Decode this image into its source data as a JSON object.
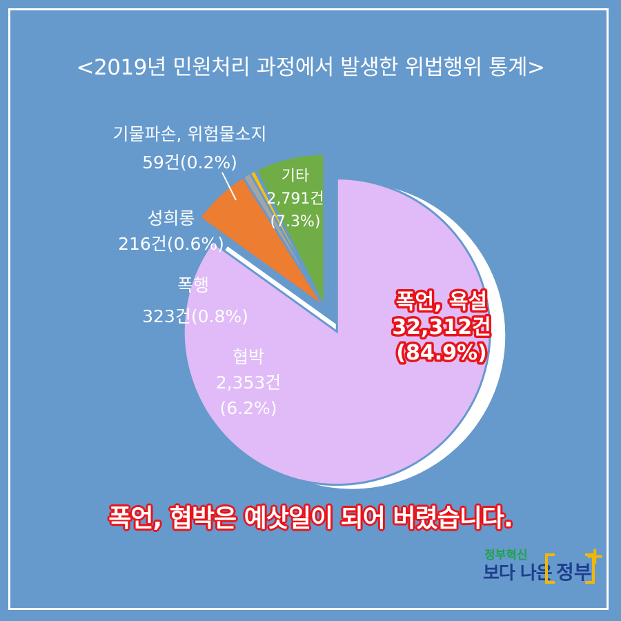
{
  "title": "<2019년 민원처리 과정에서 발생한 위법행위 통계>",
  "headline": "폭언, 협박은 예삿일이 되어 버렸습니다.",
  "logo": {
    "top": "정부혁신",
    "main": "보다 나은",
    "accent": "정부"
  },
  "chart_data": {
    "type": "pie",
    "title": "<2019년 민원처리 과정에서 발생한 위법행위 통계>",
    "unit": "건",
    "slices": [
      {
        "name": "폭언, 욕설",
        "value": 32312,
        "value_label": "32,312건",
        "percent_label": "(84.9%)",
        "color": "#e0bbf7"
      },
      {
        "name": "협박",
        "value": 2353,
        "value_label": "2,353건",
        "percent_label": "(6.2%)",
        "color": "#ed7d31"
      },
      {
        "name": "폭행",
        "value": 323,
        "value_label": "323건(0.8%)",
        "percent_label": "",
        "color": "#a5a5a5"
      },
      {
        "name": "성희롱",
        "value": 216,
        "value_label": "216건(0.6%)",
        "percent_label": "",
        "color": "#ffc000"
      },
      {
        "name": "기물파손, 위험물소지",
        "value": 59,
        "value_label": "59건(0.2%)",
        "percent_label": "",
        "color": "#4472c4"
      },
      {
        "name": "기타",
        "value": 2791,
        "value_label": "2,791건",
        "percent_label": "(7.3%)",
        "color": "#70ad47"
      }
    ]
  }
}
